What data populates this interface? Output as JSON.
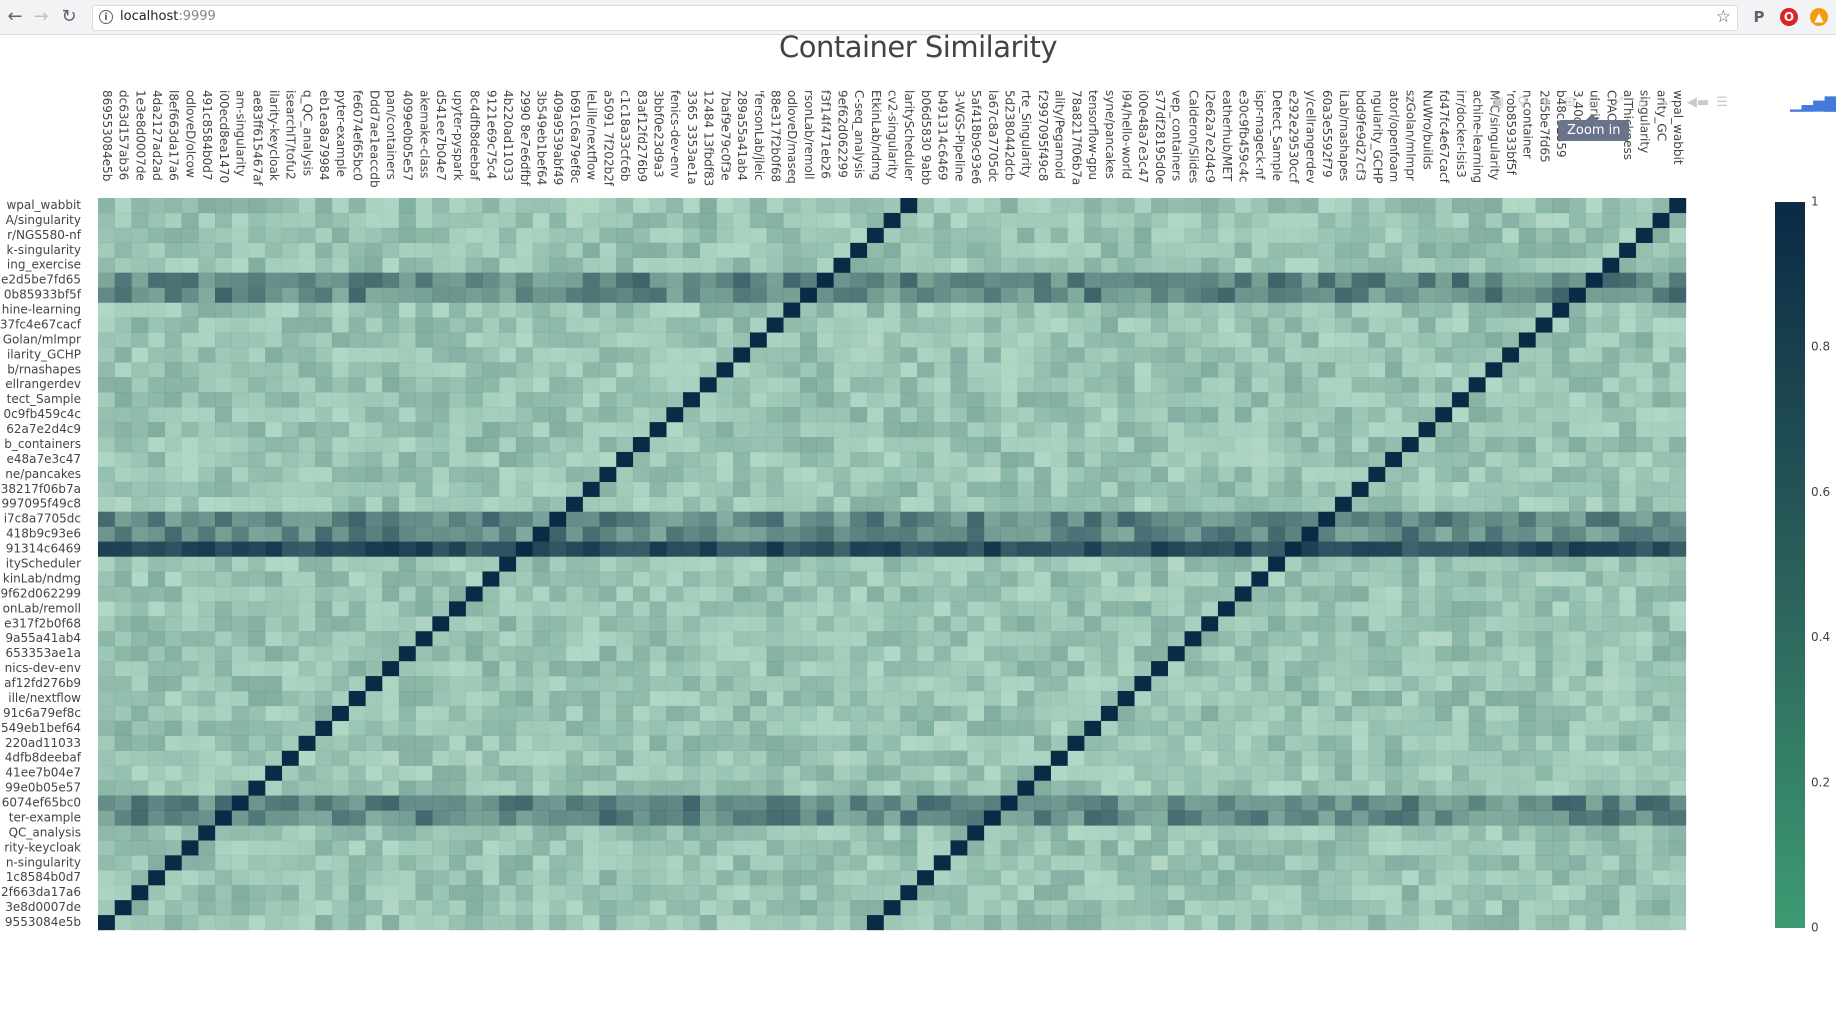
{
  "browser": {
    "url_host": "localhost",
    "url_port": ":9999"
  },
  "toolbar": {
    "tooltip": "Zoom in"
  },
  "icons": {
    "back": "arrow-left-icon",
    "forward": "arrow-right-icon",
    "reload": "reload-icon",
    "info": "info-icon",
    "bookmark": "star-icon",
    "camera": "camera-icon",
    "zoom": "zoom-icon",
    "pan": "pan-icon",
    "zoom_in": "plus-box-icon",
    "zoom_out": "minus-box-icon",
    "autoscale": "autoscale-icon",
    "reset": "home-icon",
    "spike": "spike-lines-icon",
    "hover_closest": "hover-closest-icon",
    "hover_compare": "hover-compare-icon",
    "plotly_logo": "plotly-logo-icon"
  },
  "chart_data": {
    "type": "heatmap",
    "title": "Container Similarity",
    "colorscale": [
      "#3d9b72",
      "#2a5e5a",
      "#0b2a45"
    ],
    "colorbar": {
      "range": [
        0,
        1
      ],
      "ticks": [
        "0",
        "0.2",
        "0.4",
        "0.6",
        "0.8",
        "1"
      ]
    },
    "dense_rows": [
      5,
      6,
      21,
      22,
      23,
      40,
      41
    ],
    "strong_row": 23,
    "x_labels": [
      "869553084e5b",
      "dc63d157ab36",
      "1e3e8d0007de",
      "4da2127ad2ad",
      "l8ef663da17a6",
      "odloveD/olcow",
      "491c8584b0d7",
      "i00ecd8ea1470",
      "am-singularity",
      "ae83ff615467af",
      "ilarity-keycloak",
      "isearchIT/tofu2",
      "q_QC_analysis",
      "eb1ea8a79984",
      "pyter-example",
      "fe6074ef65bc0",
      "Ddd7ae1eaccdb",
      "pan/containers",
      "4099e0b05e57",
      "akemake-class",
      "d541ee7b04e7",
      "upyter-pyspark",
      "8c4dfb8deebaf",
      "9121e69c75c4",
      "4b220ad11033",
      "2990 8e7e6dfbf",
      "3b549eb1bef64",
      "409a9539abf49",
      "b691c6a79ef8c",
      "leLille/nextflow",
      "a5091 7f202b2f",
      "c1c18a33cfc6b",
      "83af12fd276b9",
      "3bbf0e23d9a3",
      "fenics-dev-env",
      "3365 3353ae1a",
      "12484 13fbdf83",
      "7baf9e79c0f3e",
      "289a55a41ab4",
      "'fersonLab/jleic",
      "88e317f2b0f68",
      "odloveD/maseq",
      "rsonLab/remoll",
      "f3f14f471eb26",
      "9ef62d062299",
      "C-seq_analysis",
      "EtkinLab/ndmg",
      "cv2-singularity",
      "larityScheduler",
      "b06d5830 9abb",
      "b491314c6469",
      "3-WGS-Pipeline",
      "5af418b9c93e6",
      "la67c8a7705dc",
      "5d2380442dcb",
      "rte_Singularity",
      "f2997095f49c8",
      "ality/Pegamoid",
      "78a8217f06b7a",
      "tensorflow-gpu",
      "syne/pancakes",
      "i94/hello-world",
      "i00e48a7e3c47",
      "s77df28195d0e",
      "vep_containers",
      "Calderon/Slides",
      "l2e62a7e2d4c9",
      "eatherhub/MET",
      "e30c9fb459c4c",
      "ispr-mageck-nf",
      "Detect_Sample",
      "e292e29530ccf",
      "y/cellrangerdev",
      "60a3e5592f79",
      "iLab/rnashapes",
      "bdd9fe9d27cf3",
      "ngularity_GCHP",
      "atorl/openfoam",
      "szGolan/mlmpr",
      "NuWro/builds",
      "fd47fc4e67cacf",
      "irr/docker-lsis3",
      "achine-learning",
      "M-C/singularity",
      "'rob85933bf5f",
      "n-container",
      "2d5be7fd65",
      "b48c32359",
      "3.40df",
      "ularity",
      "CPAC",
      "alThickness",
      "singularity",
      "arity_GC",
      "wpal_wabbit"
    ],
    "y_labels": [
      "wpal_wabbit",
      "A/singularity",
      "r/NGS580-nf",
      "k-singularity",
      "ing_exercise",
      "e2d5be7fd65",
      "0b85933bf5f",
      "hine-learning",
      "37fc4e67cacf",
      "Golan/mlmpr",
      "ilarity_GCHP",
      "b/rnashapes",
      "ellrangerdev",
      "tect_Sample",
      "0c9fb459c4c",
      "62a7e2d4c9",
      "b_containers",
      "e48a7e3c47",
      "ne/pancakes",
      "38217f06b7a",
      "997095f49c8",
      "i7c8a7705dc",
      "418b9c93e6",
      "91314c6469",
      "ityScheduler",
      "kinLab/ndmg",
      "9f62d062299",
      "onLab/remoll",
      "e317f2b0f68",
      "9a55a41ab4",
      "653353ae1a",
      "nics-dev-env",
      "af12fd276b9",
      "ille/nextflow",
      "91c6a79ef8c",
      "549eb1bef64",
      "220ad11033",
      "4dfb8deebaf",
      "41ee7b04e7",
      "99e0b05e57",
      "6074ef65bc0",
      "ter-example",
      "QC_analysis",
      "rity-keycloak",
      "n-singularity",
      "1c8584b0d7",
      "2f663da17a6",
      "3e8d0007de",
      "9553084e5b"
    ]
  }
}
